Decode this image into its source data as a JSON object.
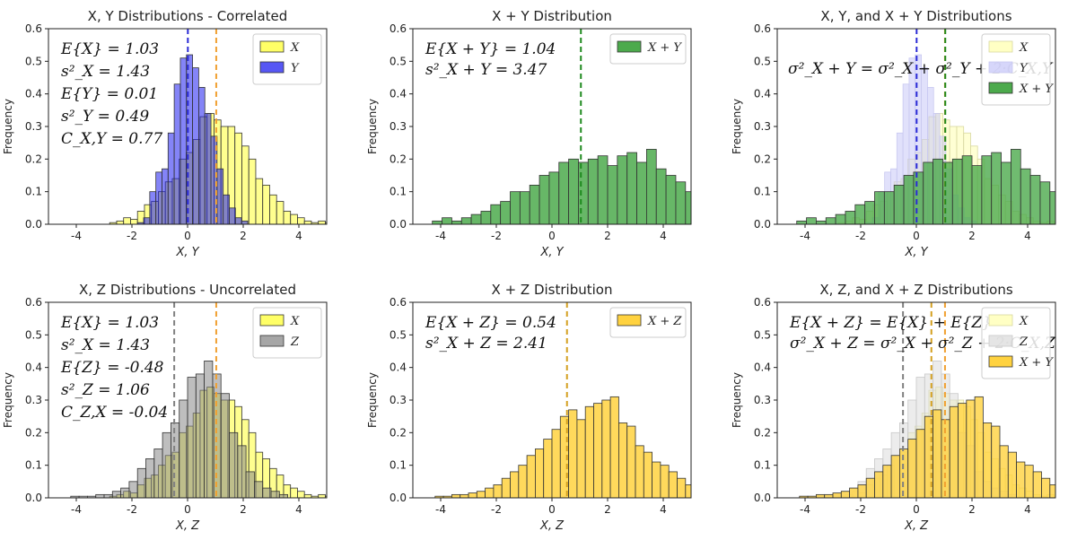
{
  "chart_data": [
    {
      "id": "p1",
      "type": "bar",
      "title": "X, Y Distributions - Correlated",
      "xlabel": "X, Y",
      "ylabel": "Frequency",
      "xlim": [
        -5,
        5
      ],
      "ylim": [
        0,
        0.6
      ],
      "xticks": [
        "-4",
        "-2",
        "0",
        "2",
        "4"
      ],
      "yticks": [
        "0.0",
        "0.1",
        "0.2",
        "0.3",
        "0.4",
        "0.5",
        "0.6"
      ],
      "legend_position": "top-right",
      "stats": [
        "E{X} = 1.03",
        "s²_X = 1.43",
        "E{Y} = 0.01",
        "s²_Y = 0.49",
        "C_X,Y = 0.77"
      ],
      "series": [
        {
          "name": "X",
          "color": "#ffff33",
          "opacity": 0.55,
          "edge": "#333333",
          "bins": {
            "start": -2.8,
            "width": 0.25,
            "values": [
              0.005,
              0.01,
              0.02,
              0.015,
              0.04,
              0.06,
              0.07,
              0.1,
              0.13,
              0.14,
              0.2,
              0.22,
              0.26,
              0.33,
              0.34,
              0.32,
              0.3,
              0.3,
              0.28,
              0.24,
              0.2,
              0.14,
              0.12,
              0.09,
              0.07,
              0.04,
              0.03,
              0.02,
              0.01,
              0.005,
              0.01,
              0.005
            ]
          }
        },
        {
          "name": "Y",
          "color": "#1f1ff0",
          "opacity": 0.55,
          "edge": "#333333",
          "bins": {
            "start": -1.8,
            "width": 0.22,
            "values": [
              0.005,
              0.02,
              0.1,
              0.16,
              0.17,
              0.28,
              0.43,
              0.51,
              0.52,
              0.48,
              0.42,
              0.34,
              0.27,
              0.17,
              0.09,
              0.05,
              0.02,
              0.01
            ]
          }
        }
      ],
      "vlines": [
        {
          "x": 0.01,
          "color": "#2a2ad6"
        },
        {
          "x": 1.03,
          "color": "#f0a030"
        }
      ]
    },
    {
      "id": "p2",
      "type": "bar",
      "title": "X + Y Distribution",
      "xlabel": "X, Y",
      "ylabel": "Frequency",
      "xlim": [
        -5,
        5
      ],
      "ylim": [
        0,
        0.6
      ],
      "xticks": [
        "-4",
        "-2",
        "0",
        "2",
        "4"
      ],
      "yticks": [
        "0.0",
        "0.1",
        "0.2",
        "0.3",
        "0.4",
        "0.5",
        "0.6"
      ],
      "legend_position": "top-right",
      "stats": [
        "E{X + Y} = 1.04",
        "s²_X + Y = 3.47"
      ],
      "series": [
        {
          "name": "X + Y",
          "color": "#4caa4c",
          "opacity": 0.85,
          "edge": "#333333",
          "bins": {
            "start": -4.3,
            "width": 0.35,
            "values": [
              0.01,
              0.02,
              0.01,
              0.02,
              0.03,
              0.04,
              0.06,
              0.07,
              0.1,
              0.1,
              0.12,
              0.15,
              0.16,
              0.19,
              0.2,
              0.19,
              0.2,
              0.21,
              0.18,
              0.21,
              0.22,
              0.19,
              0.23,
              0.17,
              0.15,
              0.13,
              0.1,
              0.08,
              0.06,
              0.07,
              0.07,
              0.05,
              0.04,
              0.03
            ]
          }
        }
      ],
      "vlines": [
        {
          "x": 1.04,
          "color": "#1f8a1f"
        }
      ]
    },
    {
      "id": "p3",
      "type": "bar",
      "title": "X, Y, and X + Y Distributions",
      "xlabel": "X, Y",
      "ylabel": "Frequency",
      "xlim": [
        -5,
        5
      ],
      "ylim": [
        0,
        0.6
      ],
      "xticks": [
        "-4",
        "-2",
        "0",
        "2",
        "4"
      ],
      "yticks": [
        "0.0",
        "0.1",
        "0.2",
        "0.3",
        "0.4",
        "0.5",
        "0.6"
      ],
      "legend_position": "top-right",
      "stats": [
        "σ²_X + Y = σ²_X + σ²_Y + 2·C_X,Y"
      ],
      "series": [
        {
          "name": "X",
          "color": "#ffffb0",
          "opacity": 0.55,
          "edge": "#d8d8a0",
          "bins": {
            "start": -2.8,
            "width": 0.25,
            "values": [
              0.005,
              0.01,
              0.02,
              0.015,
              0.04,
              0.06,
              0.07,
              0.1,
              0.13,
              0.14,
              0.2,
              0.22,
              0.26,
              0.33,
              0.34,
              0.32,
              0.3,
              0.3,
              0.28,
              0.24,
              0.2,
              0.14,
              0.12,
              0.09,
              0.07,
              0.04,
              0.03,
              0.02,
              0.01,
              0.005,
              0.01,
              0.005
            ]
          }
        },
        {
          "name": "Y",
          "color": "#c8c8f8",
          "opacity": 0.55,
          "edge": "#c8c8f0",
          "bins": {
            "start": -1.8,
            "width": 0.22,
            "values": [
              0.005,
              0.02,
              0.1,
              0.16,
              0.17,
              0.28,
              0.43,
              0.51,
              0.52,
              0.48,
              0.42,
              0.34,
              0.27,
              0.17,
              0.09,
              0.05,
              0.02,
              0.01
            ]
          }
        },
        {
          "name": "X + Y",
          "color": "#4caa4c",
          "opacity": 0.8,
          "edge": "#333333",
          "bins": {
            "start": -4.3,
            "width": 0.35,
            "values": [
              0.01,
              0.02,
              0.01,
              0.02,
              0.03,
              0.04,
              0.06,
              0.07,
              0.1,
              0.1,
              0.12,
              0.15,
              0.16,
              0.19,
              0.2,
              0.19,
              0.2,
              0.21,
              0.18,
              0.21,
              0.22,
              0.19,
              0.23,
              0.17,
              0.15,
              0.13,
              0.1,
              0.08,
              0.06,
              0.07,
              0.07,
              0.05,
              0.04,
              0.03
            ]
          }
        }
      ],
      "vlines": [
        {
          "x": 0.01,
          "color": "#2a2ad6"
        },
        {
          "x": 1.03,
          "color": "#f0a030"
        },
        {
          "x": 1.04,
          "color": "#1f8a1f"
        }
      ]
    },
    {
      "id": "p4",
      "type": "bar",
      "title": "X, Z Distributions - Uncorrelated",
      "xlabel": "X, Z",
      "ylabel": "Frequency",
      "xlim": [
        -5,
        5
      ],
      "ylim": [
        0,
        0.6
      ],
      "xticks": [
        "-4",
        "-2",
        "0",
        "2",
        "4"
      ],
      "yticks": [
        "0.0",
        "0.1",
        "0.2",
        "0.3",
        "0.4",
        "0.5",
        "0.6"
      ],
      "legend_position": "top-right",
      "stats": [
        "E{X} = 1.03",
        "s²_X = 1.43",
        "E{Z} = -0.48",
        "s²_Z = 1.06",
        "C_Z,X = -0.04"
      ],
      "series": [
        {
          "name": "X",
          "color": "#ffff33",
          "opacity": 0.55,
          "edge": "#333333",
          "bins": {
            "start": -2.8,
            "width": 0.25,
            "values": [
              0.005,
              0.01,
              0.02,
              0.015,
              0.04,
              0.06,
              0.07,
              0.1,
              0.13,
              0.14,
              0.2,
              0.22,
              0.26,
              0.33,
              0.34,
              0.32,
              0.3,
              0.3,
              0.28,
              0.24,
              0.2,
              0.14,
              0.12,
              0.09,
              0.07,
              0.04,
              0.03,
              0.02,
              0.01,
              0.005,
              0.01,
              0.005
            ]
          }
        },
        {
          "name": "Z",
          "color": "#888888",
          "opacity": 0.55,
          "edge": "#333333",
          "bins": {
            "start": -4.2,
            "width": 0.3,
            "values": [
              0.005,
              0.005,
              0.005,
              0.01,
              0.01,
              0.02,
              0.03,
              0.05,
              0.09,
              0.12,
              0.15,
              0.2,
              0.23,
              0.3,
              0.37,
              0.38,
              0.42,
              0.38,
              0.32,
              0.2,
              0.16,
              0.08,
              0.05,
              0.03,
              0.02,
              0.01
            ]
          }
        }
      ],
      "vlines": [
        {
          "x": -0.48,
          "color": "#808080"
        },
        {
          "x": 1.03,
          "color": "#f0a030"
        }
      ]
    },
    {
      "id": "p5",
      "type": "bar",
      "title": "X + Z Distribution",
      "xlabel": "X, Z",
      "ylabel": "Frequency",
      "xlim": [
        -5,
        5
      ],
      "ylim": [
        0,
        0.6
      ],
      "xticks": [
        "-4",
        "-2",
        "0",
        "2",
        "4"
      ],
      "yticks": [
        "0.0",
        "0.1",
        "0.2",
        "0.3",
        "0.4",
        "0.5",
        "0.6"
      ],
      "legend_position": "top-right",
      "stats": [
        "E{X + Z} = 0.54",
        "s²_X + Z = 2.41"
      ],
      "series": [
        {
          "name": "X + Z",
          "color": "#ffd23f",
          "opacity": 0.85,
          "edge": "#333333",
          "bins": {
            "start": -4.2,
            "width": 0.3,
            "values": [
              0.005,
              0.005,
              0.01,
              0.01,
              0.015,
              0.02,
              0.03,
              0.04,
              0.06,
              0.08,
              0.1,
              0.13,
              0.15,
              0.18,
              0.21,
              0.25,
              0.27,
              0.24,
              0.28,
              0.29,
              0.3,
              0.31,
              0.23,
              0.22,
              0.16,
              0.14,
              0.11,
              0.1,
              0.08,
              0.06,
              0.04,
              0.03,
              0.02,
              0.01
            ]
          }
        }
      ],
      "vlines": [
        {
          "x": 0.54,
          "color": "#d4a020"
        }
      ]
    },
    {
      "id": "p6",
      "type": "bar",
      "title": "X, Z, and X + Z Distributions",
      "xlabel": "X, Z",
      "ylabel": "Frequency",
      "xlim": [
        -5,
        5
      ],
      "ylim": [
        0,
        0.6
      ],
      "xticks": [
        "-4",
        "-2",
        "0",
        "2",
        "4"
      ],
      "yticks": [
        "0.0",
        "0.1",
        "0.2",
        "0.3",
        "0.4",
        "0.5",
        "0.6"
      ],
      "legend_position": "top-right",
      "stats": [
        "E{X + Z} = E{X} + E{Z}",
        "σ²_X + Z = σ²_X + σ²_Z + 2·C_X,Z"
      ],
      "series": [
        {
          "name": "X",
          "color": "#ffffb0",
          "opacity": 0.55,
          "edge": "#d8d8a0",
          "bins": {
            "start": -2.8,
            "width": 0.25,
            "values": [
              0.005,
              0.01,
              0.02,
              0.015,
              0.04,
              0.06,
              0.07,
              0.1,
              0.13,
              0.14,
              0.2,
              0.22,
              0.26,
              0.33,
              0.34,
              0.32,
              0.3,
              0.3,
              0.28,
              0.24,
              0.2,
              0.14,
              0.12,
              0.09,
              0.07,
              0.04,
              0.03,
              0.02,
              0.01,
              0.005,
              0.01,
              0.005
            ]
          }
        },
        {
          "name": "Z",
          "color": "#dcdcdc",
          "opacity": 0.55,
          "edge": "#c8c8c8",
          "bins": {
            "start": -4.2,
            "width": 0.3,
            "values": [
              0.005,
              0.005,
              0.005,
              0.01,
              0.01,
              0.02,
              0.03,
              0.05,
              0.09,
              0.12,
              0.15,
              0.2,
              0.23,
              0.3,
              0.37,
              0.38,
              0.42,
              0.38,
              0.32,
              0.2,
              0.16,
              0.08,
              0.05,
              0.03,
              0.02,
              0.01
            ]
          }
        },
        {
          "name": "X + Y",
          "color": "#ffd23f",
          "opacity": 0.8,
          "edge": "#333333",
          "bins": {
            "start": -4.2,
            "width": 0.3,
            "values": [
              0.005,
              0.005,
              0.01,
              0.01,
              0.015,
              0.02,
              0.03,
              0.04,
              0.06,
              0.08,
              0.1,
              0.13,
              0.15,
              0.18,
              0.21,
              0.25,
              0.27,
              0.24,
              0.28,
              0.29,
              0.3,
              0.31,
              0.23,
              0.22,
              0.16,
              0.14,
              0.11,
              0.1,
              0.08,
              0.06,
              0.04,
              0.03,
              0.02,
              0.01
            ]
          }
        }
      ],
      "vlines": [
        {
          "x": -0.48,
          "color": "#808080"
        },
        {
          "x": 0.54,
          "color": "#d4a020"
        },
        {
          "x": 1.03,
          "color": "#f0a030"
        }
      ]
    }
  ]
}
